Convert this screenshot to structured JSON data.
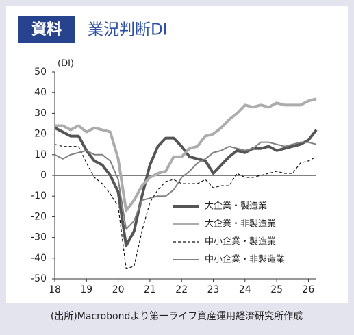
{
  "badge": "資料",
  "source": "(出所)Macrobondより第一ライフ資産運用経済研究所作成",
  "chart_data": {
    "type": "line",
    "title": "業況判断DI",
    "y_label": "(DI)",
    "x": [
      18,
      18.25,
      18.5,
      18.75,
      19,
      19.25,
      19.5,
      19.75,
      20,
      20.25,
      20.5,
      20.75,
      21,
      21.25,
      21.5,
      21.75,
      22,
      22.25,
      22.5,
      22.75,
      23,
      23.25,
      23.5,
      23.75,
      24,
      24.25,
      24.5,
      24.75,
      25,
      25.25,
      25.5,
      25.75,
      26,
      26.25
    ],
    "xlim": [
      18,
      26.25
    ],
    "xticks": [
      18,
      19,
      20,
      21,
      22,
      23,
      24,
      25,
      26
    ],
    "ylim": [
      -50,
      50
    ],
    "yticks": [
      -50,
      -40,
      -30,
      -20,
      -10,
      0,
      10,
      20,
      30,
      40,
      50
    ],
    "legend": "lower-right",
    "series": [
      {
        "name": "大企業・製造業",
        "color": "#555555",
        "style": "solid",
        "width": 4,
        "values": [
          23,
          21,
          19,
          19,
          12,
          7,
          5,
          0,
          -8,
          -34,
          -27,
          -10,
          5,
          14,
          18,
          18,
          14,
          9,
          8,
          7,
          1,
          5,
          9,
          12,
          11,
          13,
          13,
          14,
          12,
          13,
          14,
          15,
          17,
          22
        ]
      },
      {
        "name": "大企業・非製造業",
        "color": "#acacac",
        "style": "solid",
        "width": 4,
        "values": [
          24,
          24,
          22,
          24,
          21,
          23,
          22,
          21,
          8,
          -17,
          -12,
          -5,
          -1,
          1,
          2,
          9,
          9,
          13,
          14,
          19,
          20,
          23,
          27,
          30,
          34,
          33,
          34,
          33,
          35,
          34,
          34,
          34,
          36,
          37
        ]
      },
      {
        "name": "中小企業・製造業",
        "color": "#111111",
        "style": "dashed",
        "width": 1.2,
        "values": [
          15,
          14,
          14,
          14,
          6,
          -1,
          -4,
          -9,
          -15,
          -45,
          -44,
          -27,
          -13,
          -7,
          -3,
          -2,
          -4,
          -4,
          -4,
          -2,
          -6,
          -5,
          -5,
          1,
          -1,
          -1,
          0,
          1,
          2,
          1,
          1,
          6,
          7,
          9
        ]
      },
      {
        "name": "中小企業・非製造業",
        "color": "#808080",
        "style": "solid",
        "width": 2,
        "values": [
          10,
          8,
          10,
          11,
          12,
          10,
          10,
          7,
          -2,
          -26,
          -22,
          -12,
          -11,
          -10,
          -10,
          -7,
          -1,
          2,
          6,
          8,
          11,
          12,
          14,
          13,
          12,
          13,
          16,
          16,
          15,
          14,
          15,
          16,
          16,
          15
        ]
      }
    ]
  }
}
